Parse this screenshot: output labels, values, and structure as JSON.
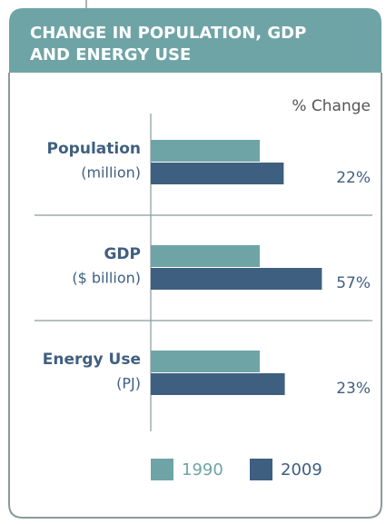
{
  "chart_data": {
    "type": "barh",
    "title": [
      "CHANGE IN POPULATION, GDP",
      "AND ENERGY USE"
    ],
    "categories": [
      "Population",
      "GDP",
      "Energy Use"
    ],
    "units": [
      "(million)",
      "($ billion)",
      "(PJ)"
    ],
    "series": [
      {
        "name": "1990",
        "color": "#6fa4a6",
        "values": [
          100,
          100,
          100
        ]
      },
      {
        "name": "2009",
        "color": "#3f5f80",
        "values": [
          122,
          157,
          123
        ]
      }
    ],
    "xlim": [
      0,
      200
    ],
    "change": {
      "label": "% Change",
      "values": [
        22,
        57,
        23
      ],
      "value_labels": [
        "22%",
        "57%",
        "23%"
      ]
    },
    "legend": "bottom"
  }
}
